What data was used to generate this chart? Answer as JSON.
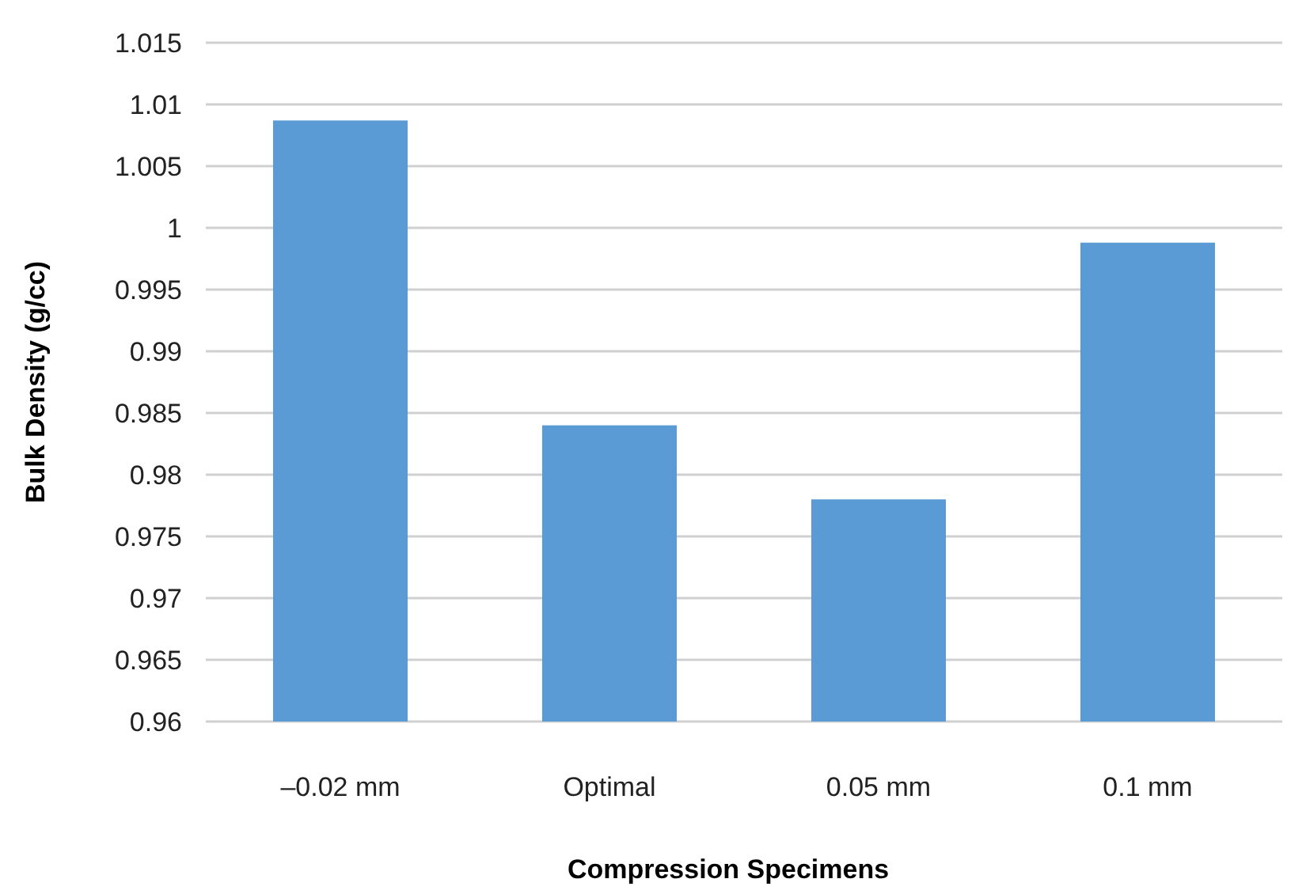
{
  "chart_data": {
    "type": "bar",
    "xlabel": "Compression Specimens",
    "ylabel": "Bulk Density (g/cc)",
    "categories": [
      "–0.02 mm",
      "Optimal",
      "0.05 mm",
      "0.1 mm"
    ],
    "values": [
      1.0087,
      0.984,
      0.978,
      0.9988
    ],
    "color": "#5b9bd5",
    "ylim": [
      0.96,
      1.015
    ],
    "yticks": [
      0.96,
      0.965,
      0.97,
      0.975,
      0.98,
      0.985,
      0.99,
      0.995,
      1,
      1.005,
      1.01,
      1.015
    ],
    "grid": "y"
  }
}
